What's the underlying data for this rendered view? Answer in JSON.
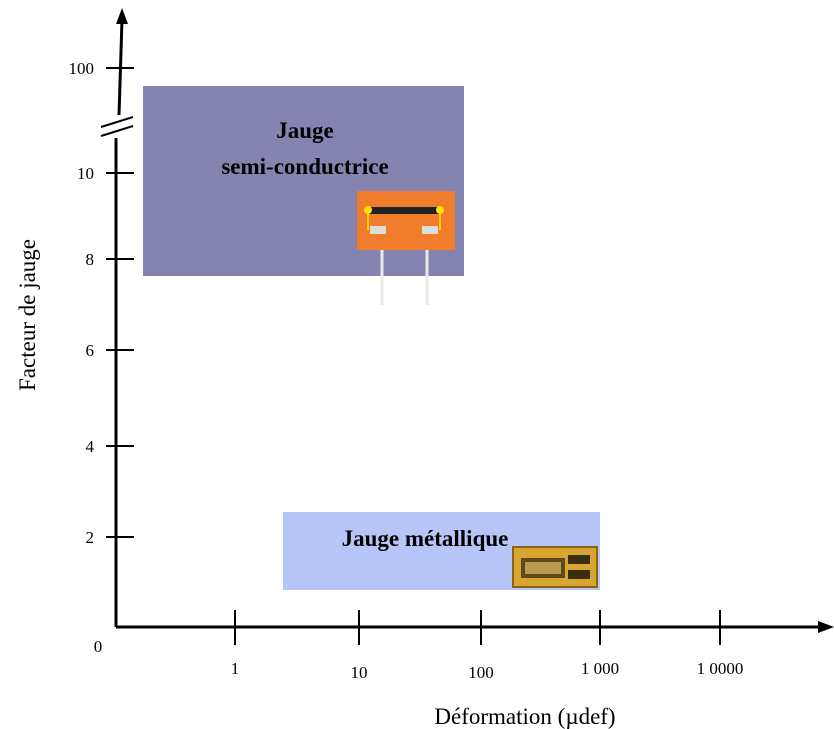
{
  "axes": {
    "y_label": "Facteur de jauge",
    "x_label": "Déformation (µdef)",
    "origin": "0",
    "y_ticks": [
      "100",
      "10",
      "8",
      "6",
      "4",
      "2"
    ],
    "x_ticks": [
      "1",
      "10",
      "100",
      "1 000",
      "1 0000"
    ]
  },
  "regions": [
    {
      "label_lines": [
        "Jauge",
        "semi-conductrice"
      ]
    },
    {
      "label_lines": [
        "Jauge métallique"
      ]
    }
  ]
}
